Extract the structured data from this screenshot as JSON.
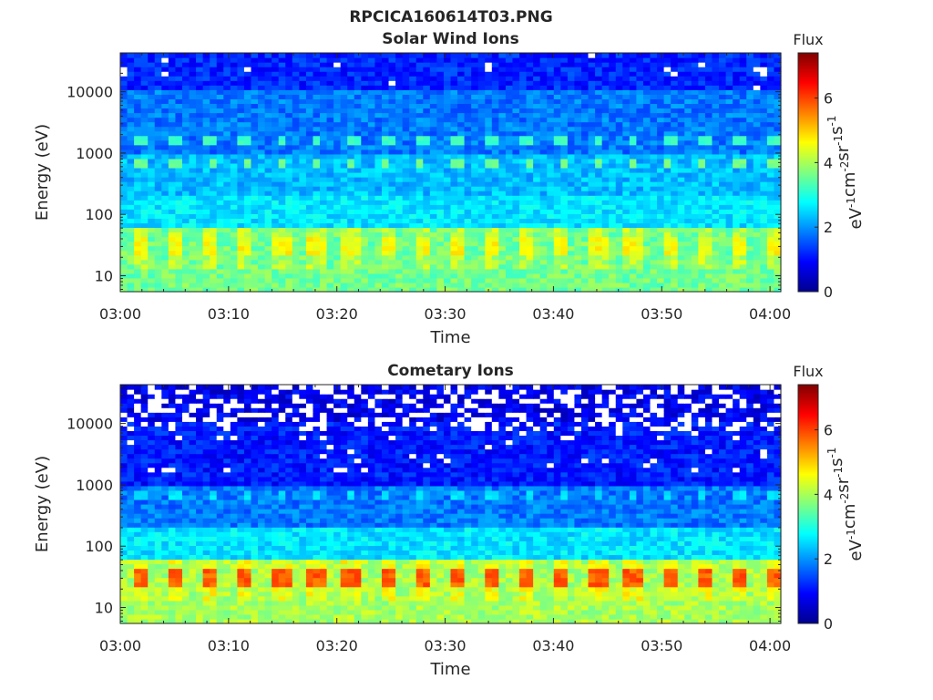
{
  "figure": {
    "title": "RPCICA160614T03.PNG"
  },
  "chart_data": [
    {
      "type": "heatmap",
      "title": "Solar Wind Ions",
      "xlabel": "Time",
      "ylabel": "Energy (eV)",
      "x_ticks": [
        "03:00",
        "03:10",
        "03:20",
        "03:30",
        "03:40",
        "03:50",
        "04:00"
      ],
      "x_range": [
        "03:00",
        "04:01"
      ],
      "y_ticks": [
        10,
        100,
        1000,
        10000
      ],
      "y_scale": "log",
      "y_range": [
        5.5,
        43000
      ],
      "colorbar": {
        "label_top": "Flux",
        "label": "eV-1cm-2sr-1s-1",
        "range": [
          0,
          7.4
        ],
        "ticks": [
          0,
          2,
          4,
          6
        ],
        "colormap": "jet"
      },
      "features": {
        "background": [
          {
            "energy": [
              5.5,
              60
            ],
            "flux": 3.6
          },
          {
            "energy": [
              60,
              200
            ],
            "flux": 2.6
          },
          {
            "energy": [
              200,
              1000
            ],
            "flux": 2.3
          },
          {
            "energy": [
              1000,
              10000
            ],
            "flux": 1.8
          },
          {
            "energy": [
              10000,
              43000
            ],
            "flux": 1.2
          }
        ],
        "pulse_energy_band": [
          22,
          40
        ],
        "pulse_peak_flux": 4.6,
        "line_1600eV_flux": 3.2,
        "line_650eV_flux": 3.6
      }
    },
    {
      "type": "heatmap",
      "title": "Cometary Ions",
      "xlabel": "Time",
      "ylabel": "Energy (eV)",
      "x_ticks": [
        "03:00",
        "03:10",
        "03:20",
        "03:30",
        "03:40",
        "03:50",
        "04:00"
      ],
      "x_range": [
        "03:00",
        "04:01"
      ],
      "y_ticks": [
        10,
        100,
        1000,
        10000
      ],
      "y_scale": "log",
      "y_range": [
        5.5,
        43000
      ],
      "colorbar": {
        "label_top": "Flux",
        "label": "eV-1cm-2sr-1s-1",
        "range": [
          0,
          7.4
        ],
        "ticks": [
          0,
          2,
          4,
          6
        ],
        "colormap": "jet"
      },
      "features": {
        "background": [
          {
            "energy": [
              5.5,
              60
            ],
            "flux": 4.0
          },
          {
            "energy": [
              60,
              200
            ],
            "flux": 2.6
          },
          {
            "energy": [
              200,
              1000
            ],
            "flux": 1.8
          },
          {
            "energy": [
              1000,
              10000
            ],
            "flux": 1.1
          },
          {
            "energy": [
              10000,
              43000
            ],
            "flux": 0.8
          }
        ],
        "pulse_energy_band": [
          22,
          40
        ],
        "pulse_peak_flux": 5.8,
        "line_650eV_flux": 2.6
      }
    }
  ]
}
